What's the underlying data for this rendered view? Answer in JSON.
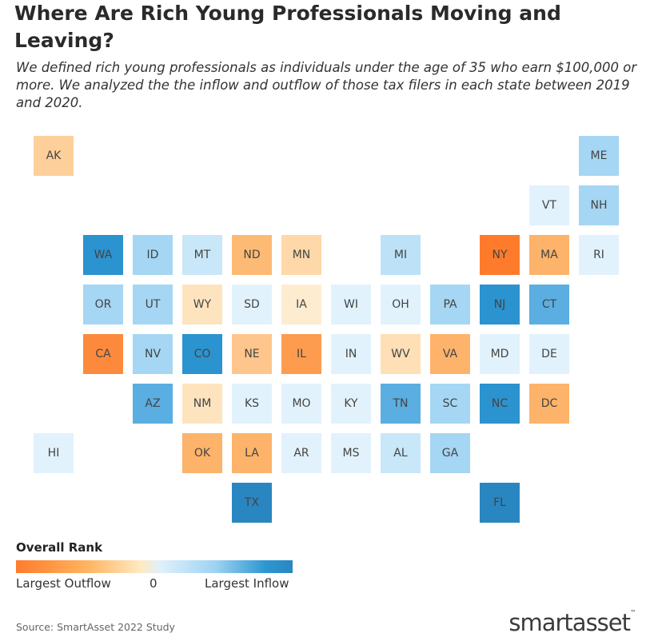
{
  "title": "Where Are Rich Young Professionals Moving and Leaving?",
  "subtitle": "We defined rich young professionals as individuals under the age of 35 who earn $100,000 or more. We analyzed the the inflow and outflow of those tax filers in each state between 2019 and 2020.",
  "legend": {
    "title": "Overall Rank",
    "left_label": "Largest Outflow",
    "mid_label": "0",
    "right_label": "Largest Inflow",
    "colors": [
      "#ff7b2c",
      "#ffb25e",
      "#ffe9c2",
      "#dff1fb",
      "#9fd3f2",
      "#2d97d3",
      "#2a86c0"
    ]
  },
  "source": "Source: SmartAsset 2022 Study",
  "logo": {
    "main": "smartasset",
    "tm": "™"
  },
  "states": [
    {
      "abbr": "AK",
      "row": 0,
      "col": 0,
      "color": "#fdd09b"
    },
    {
      "abbr": "ME",
      "row": 0,
      "col": 11,
      "color": "#a5d6f3"
    },
    {
      "abbr": "VT",
      "row": 1,
      "col": 10,
      "color": "#e2f2fc"
    },
    {
      "abbr": "NH",
      "row": 1,
      "col": 11,
      "color": "#a5d6f3"
    },
    {
      "abbr": "WA",
      "row": 2,
      "col": 1,
      "color": "#2b93cf"
    },
    {
      "abbr": "ID",
      "row": 2,
      "col": 2,
      "color": "#a5d6f3"
    },
    {
      "abbr": "MT",
      "row": 2,
      "col": 3,
      "color": "#c8e7f8"
    },
    {
      "abbr": "ND",
      "row": 2,
      "col": 4,
      "color": "#fdba74"
    },
    {
      "abbr": "MN",
      "row": 2,
      "col": 5,
      "color": "#fed8a8"
    },
    {
      "abbr": "MI",
      "row": 2,
      "col": 7,
      "color": "#bde2f7"
    },
    {
      "abbr": "NY",
      "row": 2,
      "col": 9,
      "color": "#ff7b2c"
    },
    {
      "abbr": "MA",
      "row": 2,
      "col": 10,
      "color": "#fdb36a"
    },
    {
      "abbr": "RI",
      "row": 2,
      "col": 11,
      "color": "#e2f2fc"
    },
    {
      "abbr": "OR",
      "row": 3,
      "col": 1,
      "color": "#a5d6f3"
    },
    {
      "abbr": "UT",
      "row": 3,
      "col": 2,
      "color": "#a5d6f3"
    },
    {
      "abbr": "WY",
      "row": 3,
      "col": 3,
      "color": "#fee3bf"
    },
    {
      "abbr": "SD",
      "row": 3,
      "col": 4,
      "color": "#e2f2fc"
    },
    {
      "abbr": "IA",
      "row": 3,
      "col": 5,
      "color": "#feecd0"
    },
    {
      "abbr": "WI",
      "row": 3,
      "col": 6,
      "color": "#e2f2fc"
    },
    {
      "abbr": "OH",
      "row": 3,
      "col": 7,
      "color": "#e2f2fc"
    },
    {
      "abbr": "PA",
      "row": 3,
      "col": 8,
      "color": "#a5d6f3"
    },
    {
      "abbr": "NJ",
      "row": 3,
      "col": 9,
      "color": "#2b93cf"
    },
    {
      "abbr": "CT",
      "row": 3,
      "col": 10,
      "color": "#5aaee1"
    },
    {
      "abbr": "CA",
      "row": 4,
      "col": 1,
      "color": "#fd8a3c"
    },
    {
      "abbr": "NV",
      "row": 4,
      "col": 2,
      "color": "#a5d6f3"
    },
    {
      "abbr": "CO",
      "row": 4,
      "col": 3,
      "color": "#2b93cf"
    },
    {
      "abbr": "NE",
      "row": 4,
      "col": 4,
      "color": "#fec58c"
    },
    {
      "abbr": "IL",
      "row": 4,
      "col": 5,
      "color": "#fd9c4e"
    },
    {
      "abbr": "IN",
      "row": 4,
      "col": 6,
      "color": "#e2f2fc"
    },
    {
      "abbr": "WV",
      "row": 4,
      "col": 7,
      "color": "#fedfb6"
    },
    {
      "abbr": "VA",
      "row": 4,
      "col": 8,
      "color": "#fdb36a"
    },
    {
      "abbr": "MD",
      "row": 4,
      "col": 9,
      "color": "#e2f2fc"
    },
    {
      "abbr": "DE",
      "row": 4,
      "col": 10,
      "color": "#e2f2fc"
    },
    {
      "abbr": "AZ",
      "row": 5,
      "col": 2,
      "color": "#5aaee1"
    },
    {
      "abbr": "NM",
      "row": 5,
      "col": 3,
      "color": "#fee3bf"
    },
    {
      "abbr": "KS",
      "row": 5,
      "col": 4,
      "color": "#e2f2fc"
    },
    {
      "abbr": "MO",
      "row": 5,
      "col": 5,
      "color": "#e2f2fc"
    },
    {
      "abbr": "KY",
      "row": 5,
      "col": 6,
      "color": "#e2f2fc"
    },
    {
      "abbr": "TN",
      "row": 5,
      "col": 7,
      "color": "#5aaee1"
    },
    {
      "abbr": "SC",
      "row": 5,
      "col": 8,
      "color": "#a5d6f3"
    },
    {
      "abbr": "NC",
      "row": 5,
      "col": 9,
      "color": "#2b93cf"
    },
    {
      "abbr": "DC",
      "row": 5,
      "col": 10,
      "color": "#fdb36a"
    },
    {
      "abbr": "HI",
      "row": 6,
      "col": 0,
      "color": "#e2f2fc"
    },
    {
      "abbr": "OK",
      "row": 6,
      "col": 3,
      "color": "#fdb36a"
    },
    {
      "abbr": "LA",
      "row": 6,
      "col": 4,
      "color": "#fdb36a"
    },
    {
      "abbr": "AR",
      "row": 6,
      "col": 5,
      "color": "#e2f2fc"
    },
    {
      "abbr": "MS",
      "row": 6,
      "col": 6,
      "color": "#e2f2fc"
    },
    {
      "abbr": "AL",
      "row": 6,
      "col": 7,
      "color": "#c8e7f8"
    },
    {
      "abbr": "GA",
      "row": 6,
      "col": 8,
      "color": "#a5d6f3"
    },
    {
      "abbr": "TX",
      "row": 7,
      "col": 4,
      "color": "#2a86c0"
    },
    {
      "abbr": "FL",
      "row": 7,
      "col": 9,
      "color": "#2a86c0"
    }
  ]
}
